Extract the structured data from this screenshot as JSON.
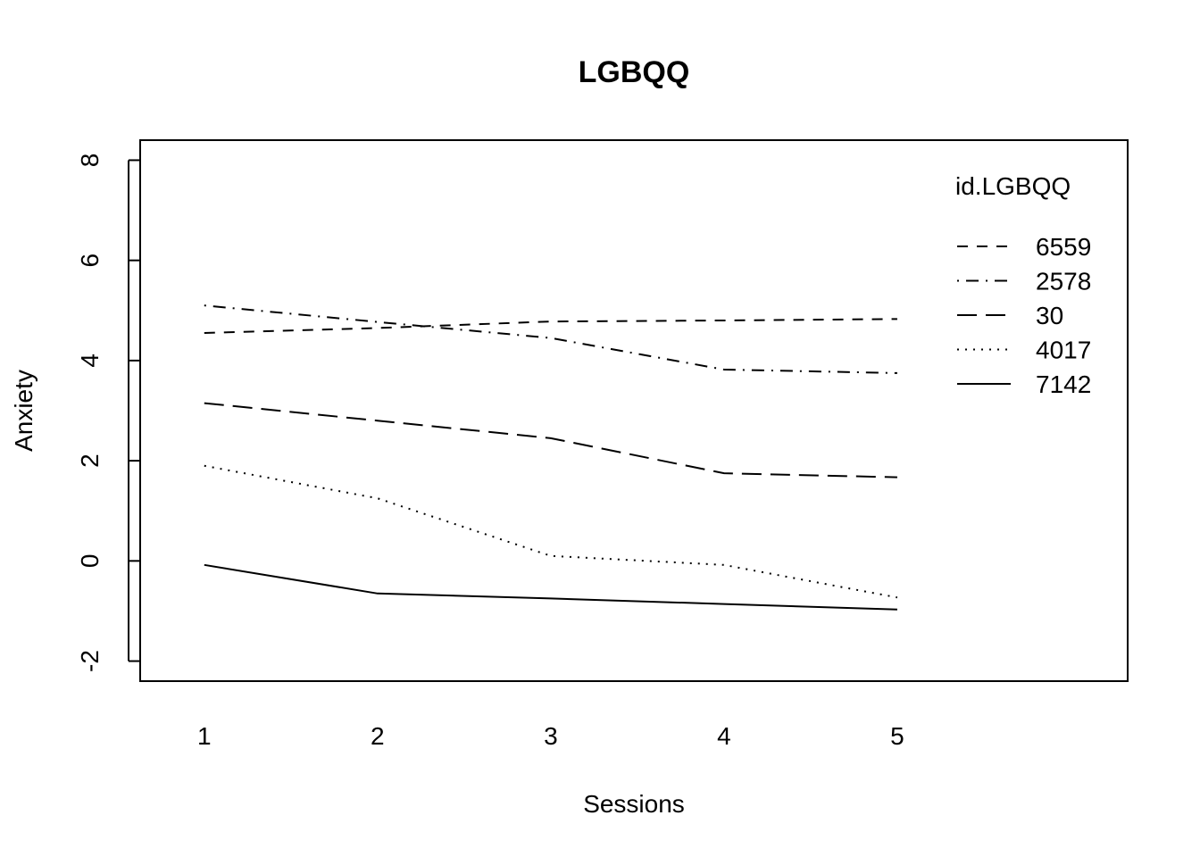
{
  "chart_data": {
    "type": "line",
    "title": "LGBQQ",
    "xlabel": "Sessions",
    "ylabel": "Anxiety",
    "x": [
      1,
      2,
      3,
      4,
      5
    ],
    "xticks": [
      "1",
      "2",
      "3",
      "4",
      "5"
    ],
    "yticks": [
      "-2",
      "0",
      "2",
      "4",
      "6",
      "8"
    ],
    "xlim": [
      0.63,
      6.33
    ],
    "ylim": [
      -2.4,
      8.4
    ],
    "grid": false,
    "legend": {
      "title": "id.LGBQQ",
      "position": "top-right"
    },
    "series": [
      {
        "name": "6559",
        "line_style": "dashed",
        "values": [
          4.55,
          4.65,
          4.78,
          4.8,
          4.83
        ]
      },
      {
        "name": "2578",
        "line_style": "dotdash",
        "values": [
          5.1,
          4.77,
          4.45,
          3.82,
          3.75
        ]
      },
      {
        "name": "30",
        "line_style": "longdash",
        "values": [
          3.15,
          2.8,
          2.45,
          1.75,
          1.67
        ]
      },
      {
        "name": "4017",
        "line_style": "dotted",
        "values": [
          1.9,
          1.25,
          0.1,
          -0.08,
          -0.73
        ]
      },
      {
        "name": "7142",
        "line_style": "solid",
        "values": [
          -0.08,
          -0.65,
          -0.75,
          -0.86,
          -0.97
        ]
      }
    ],
    "colors": {
      "line": "#000000",
      "background": "#ffffff"
    }
  }
}
